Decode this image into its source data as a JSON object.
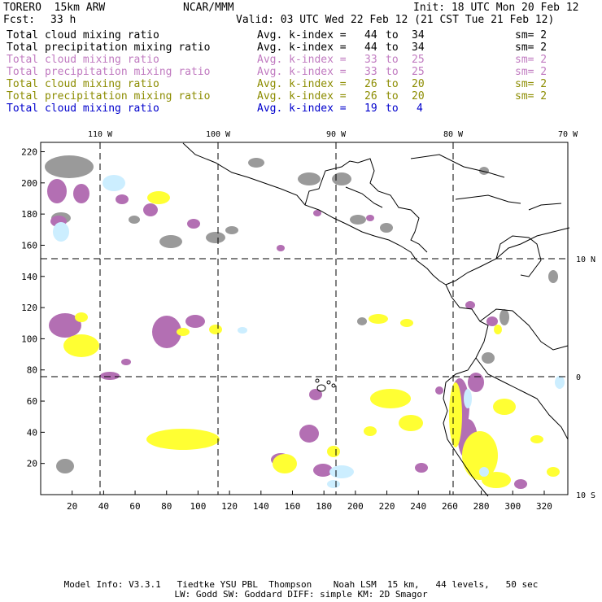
{
  "header": {
    "model_name": "TORERO  15km ARW",
    "org": "NCAR/MMM",
    "init": "Init: 18 UTC Mon 20 Feb 12",
    "fcst_label": "Fcst:",
    "fcst_value": "33 h",
    "valid": "Valid: 03 UTC Wed 22 Feb 12 (21 CST Tue 21 Feb 12)"
  },
  "legend": [
    {
      "field": "Total cloud mixing ratio",
      "avg": "Avg. k-index =",
      "lo": "44",
      "to": "to",
      "hi": "34",
      "sm": "sm= 2",
      "color": "#000000"
    },
    {
      "field": "Total precipitation mixing ratio",
      "avg": "Avg. k-index =",
      "lo": "44",
      "to": "to",
      "hi": "34",
      "sm": "sm= 2",
      "color": "#000000"
    },
    {
      "field": "Total cloud mixing ratio",
      "avg": "Avg. k-index =",
      "lo": "33",
      "to": "to",
      "hi": "25",
      "sm": "sm= 2",
      "color": "#c07ac0"
    },
    {
      "field": "Total precipitation mixing ratio",
      "avg": "Avg. k-index =",
      "lo": "33",
      "to": "to",
      "hi": "25",
      "sm": "sm= 2",
      "color": "#c07ac0"
    },
    {
      "field": "Total cloud mixing ratio",
      "avg": "Avg. k-index =",
      "lo": "26",
      "to": "to",
      "hi": "20",
      "sm": "sm= 2",
      "color": "#8c8c00"
    },
    {
      "field": "Total precipitation mixing ratio",
      "avg": "Avg. k-index =",
      "lo": "26",
      "to": "to",
      "hi": "20",
      "sm": "sm= 2",
      "color": "#8c8c00"
    },
    {
      "field": "Total cloud mixing ratio",
      "avg": "Avg. k-index =",
      "lo": "19",
      "to": "to",
      "hi": "4",
      "sm": "",
      "color": "#0000cc"
    }
  ],
  "map": {
    "lon_labels": [
      "110 W",
      "100 W",
      "90 W",
      "80 W",
      "70 W"
    ],
    "lat_labels": [
      "10 N",
      "0",
      "10 S"
    ],
    "x_ticks": [
      "20",
      "40",
      "60",
      "80",
      "100",
      "120",
      "140",
      "160",
      "180",
      "200",
      "220",
      "240",
      "260",
      "280",
      "300",
      "320"
    ],
    "y_ticks": [
      "20",
      "40",
      "60",
      "80",
      "100",
      "120",
      "140",
      "160",
      "180",
      "200",
      "220"
    ],
    "colors": {
      "gray": "#9a9a9a",
      "purple": "#b36fb3",
      "yellow": "#ffff33",
      "lightblue": "#cceeff",
      "coast": "#000000"
    }
  },
  "footer": {
    "line1": "Model Info: V3.3.1   Tiedtke YSU PBL  Thompson    Noah LSM  15 km,   44 levels,   50 sec",
    "line2": "LW: Godd SW: Goddard DIFF: simple KM: 2D Smagor"
  }
}
